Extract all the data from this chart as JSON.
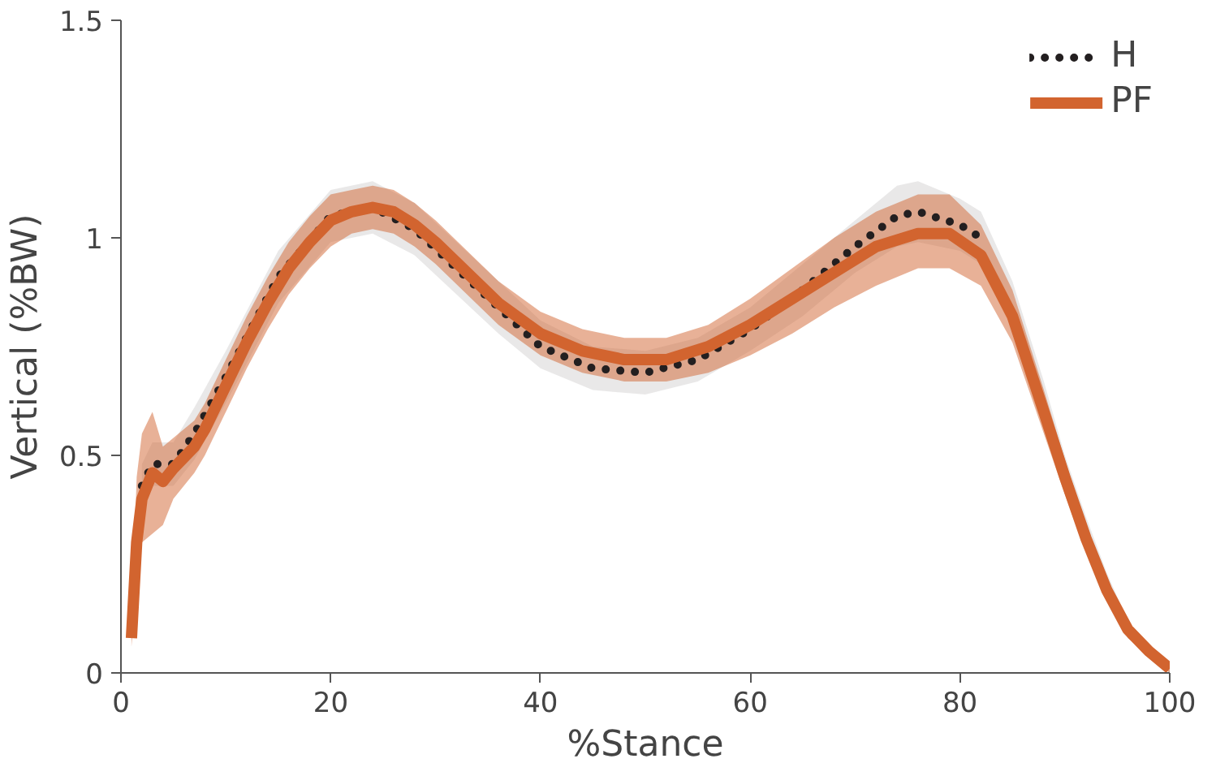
{
  "chart_data": {
    "type": "line",
    "xlabel": "%Stance",
    "ylabel": "Vertical (%BW)",
    "xlim": [
      0,
      100
    ],
    "ylim": [
      0,
      1.5
    ],
    "xticks": [
      0,
      20,
      40,
      60,
      80,
      100
    ],
    "yticks": [
      0,
      0.5,
      1,
      1.5
    ],
    "grid": false,
    "legend": "top right",
    "series": [
      {
        "name": "H",
        "color": "#231f20",
        "line_style": "dotted",
        "x": [
          2,
          3,
          5,
          7,
          10,
          15,
          20,
          24,
          28,
          32,
          36,
          40,
          45,
          50,
          55,
          60,
          65,
          70,
          74,
          76,
          80,
          82,
          85,
          88,
          90,
          92,
          94,
          96,
          98,
          100
        ],
        "values": [
          0.43,
          0.48,
          0.48,
          0.55,
          0.68,
          0.91,
          1.05,
          1.07,
          1.02,
          0.93,
          0.84,
          0.75,
          0.7,
          0.69,
          0.72,
          0.79,
          0.88,
          0.98,
          1.05,
          1.06,
          1.03,
          1.0,
          null,
          null,
          null,
          null,
          null,
          null,
          null,
          null
        ],
        "lower": [
          0.38,
          0.43,
          0.43,
          0.49,
          0.62,
          0.85,
          0.99,
          1.01,
          0.96,
          0.87,
          0.78,
          0.7,
          0.65,
          0.64,
          0.67,
          0.74,
          0.82,
          0.92,
          0.98,
          0.99,
          0.97,
          0.94,
          0.8,
          0.57,
          0.42,
          0.28,
          0.17,
          0.08,
          0.04,
          0.0
        ],
        "upper": [
          0.48,
          0.53,
          0.53,
          0.61,
          0.74,
          0.97,
          1.11,
          1.13,
          1.08,
          0.99,
          0.9,
          0.81,
          0.75,
          0.74,
          0.77,
          0.84,
          0.94,
          1.04,
          1.12,
          1.13,
          1.09,
          1.06,
          0.9,
          0.67,
          0.5,
          0.36,
          0.23,
          0.12,
          0.06,
          0.02
        ]
      },
      {
        "name": "PF",
        "color": "#d2642f",
        "line_style": "solid",
        "x": [
          1,
          1.5,
          2,
          3,
          4,
          5,
          7,
          8,
          10,
          12,
          14,
          16,
          18,
          20,
          22,
          24,
          26,
          28,
          30,
          33,
          36,
          40,
          44,
          48,
          52,
          56,
          60,
          64,
          68,
          72,
          76,
          79,
          82,
          85,
          88,
          90,
          92,
          94,
          96,
          98,
          100
        ],
        "values": [
          0.08,
          0.3,
          0.4,
          0.46,
          0.44,
          0.47,
          0.52,
          0.56,
          0.66,
          0.76,
          0.85,
          0.93,
          0.99,
          1.04,
          1.06,
          1.07,
          1.06,
          1.03,
          0.99,
          0.92,
          0.85,
          0.78,
          0.74,
          0.72,
          0.72,
          0.75,
          0.8,
          0.86,
          0.92,
          0.98,
          1.01,
          1.01,
          0.96,
          0.82,
          0.6,
          0.45,
          0.31,
          0.19,
          0.1,
          0.05,
          0.01
        ],
        "lower": [
          0.06,
          0.2,
          0.3,
          0.32,
          0.34,
          0.4,
          0.46,
          0.5,
          0.6,
          0.7,
          0.79,
          0.87,
          0.93,
          0.98,
          1.01,
          1.02,
          1.01,
          0.98,
          0.94,
          0.87,
          0.8,
          0.73,
          0.69,
          0.67,
          0.67,
          0.69,
          0.73,
          0.78,
          0.84,
          0.89,
          0.93,
          0.93,
          0.89,
          0.76,
          0.55,
          0.41,
          0.28,
          0.17,
          0.08,
          0.04,
          0.0
        ],
        "upper": [
          0.1,
          0.45,
          0.55,
          0.6,
          0.52,
          0.54,
          0.58,
          0.62,
          0.72,
          0.82,
          0.91,
          0.99,
          1.05,
          1.1,
          1.11,
          1.12,
          1.11,
          1.08,
          1.04,
          0.97,
          0.9,
          0.83,
          0.79,
          0.77,
          0.77,
          0.8,
          0.86,
          0.93,
          1.0,
          1.06,
          1.1,
          1.1,
          1.03,
          0.88,
          0.65,
          0.49,
          0.34,
          0.21,
          0.11,
          0.06,
          0.02
        ]
      }
    ]
  }
}
